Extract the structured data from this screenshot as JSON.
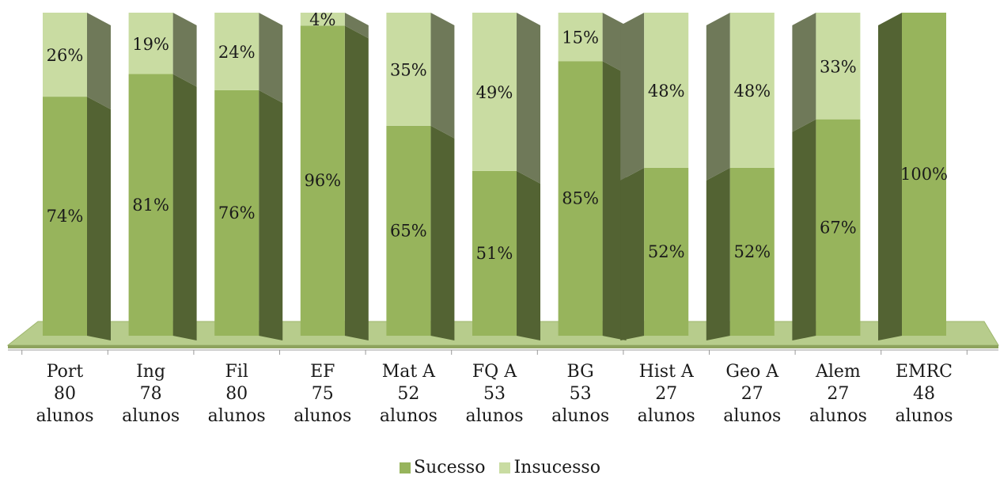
{
  "chart_data": {
    "type": "bar",
    "stacked": true,
    "percent": true,
    "categories": [
      {
        "name": "Port",
        "count": "80",
        "unit": "alunos"
      },
      {
        "name": "Ing",
        "count": "78",
        "unit": "alunos"
      },
      {
        "name": "Fil",
        "count": "80",
        "unit": "alunos"
      },
      {
        "name": "EF",
        "count": "75",
        "unit": "alunos"
      },
      {
        "name": "Mat A",
        "count": "52",
        "unit": "alunos"
      },
      {
        "name": "FQ A",
        "count": "53",
        "unit": "alunos"
      },
      {
        "name": "BG",
        "count": "53",
        "unit": "alunos"
      },
      {
        "name": "Hist A",
        "count": "27",
        "unit": "alunos"
      },
      {
        "name": "Geo A",
        "count": "27",
        "unit": "alunos"
      },
      {
        "name": "Alem",
        "count": "27",
        "unit": "alunos"
      },
      {
        "name": "EMRC",
        "count": "48",
        "unit": "alunos"
      }
    ],
    "series": [
      {
        "name": "Sucesso",
        "color": "#97b45c",
        "values": [
          74,
          81,
          76,
          96,
          65,
          51,
          85,
          52,
          52,
          67,
          100
        ]
      },
      {
        "name": "Insucesso",
        "color": "#c9dca2",
        "values": [
          26,
          19,
          24,
          4,
          35,
          49,
          15,
          48,
          48,
          33,
          0
        ]
      }
    ],
    "ylim": [
      0,
      100
    ],
    "legend_position": "bottom",
    "grid": false,
    "floor_color": "#b7cc8c"
  }
}
